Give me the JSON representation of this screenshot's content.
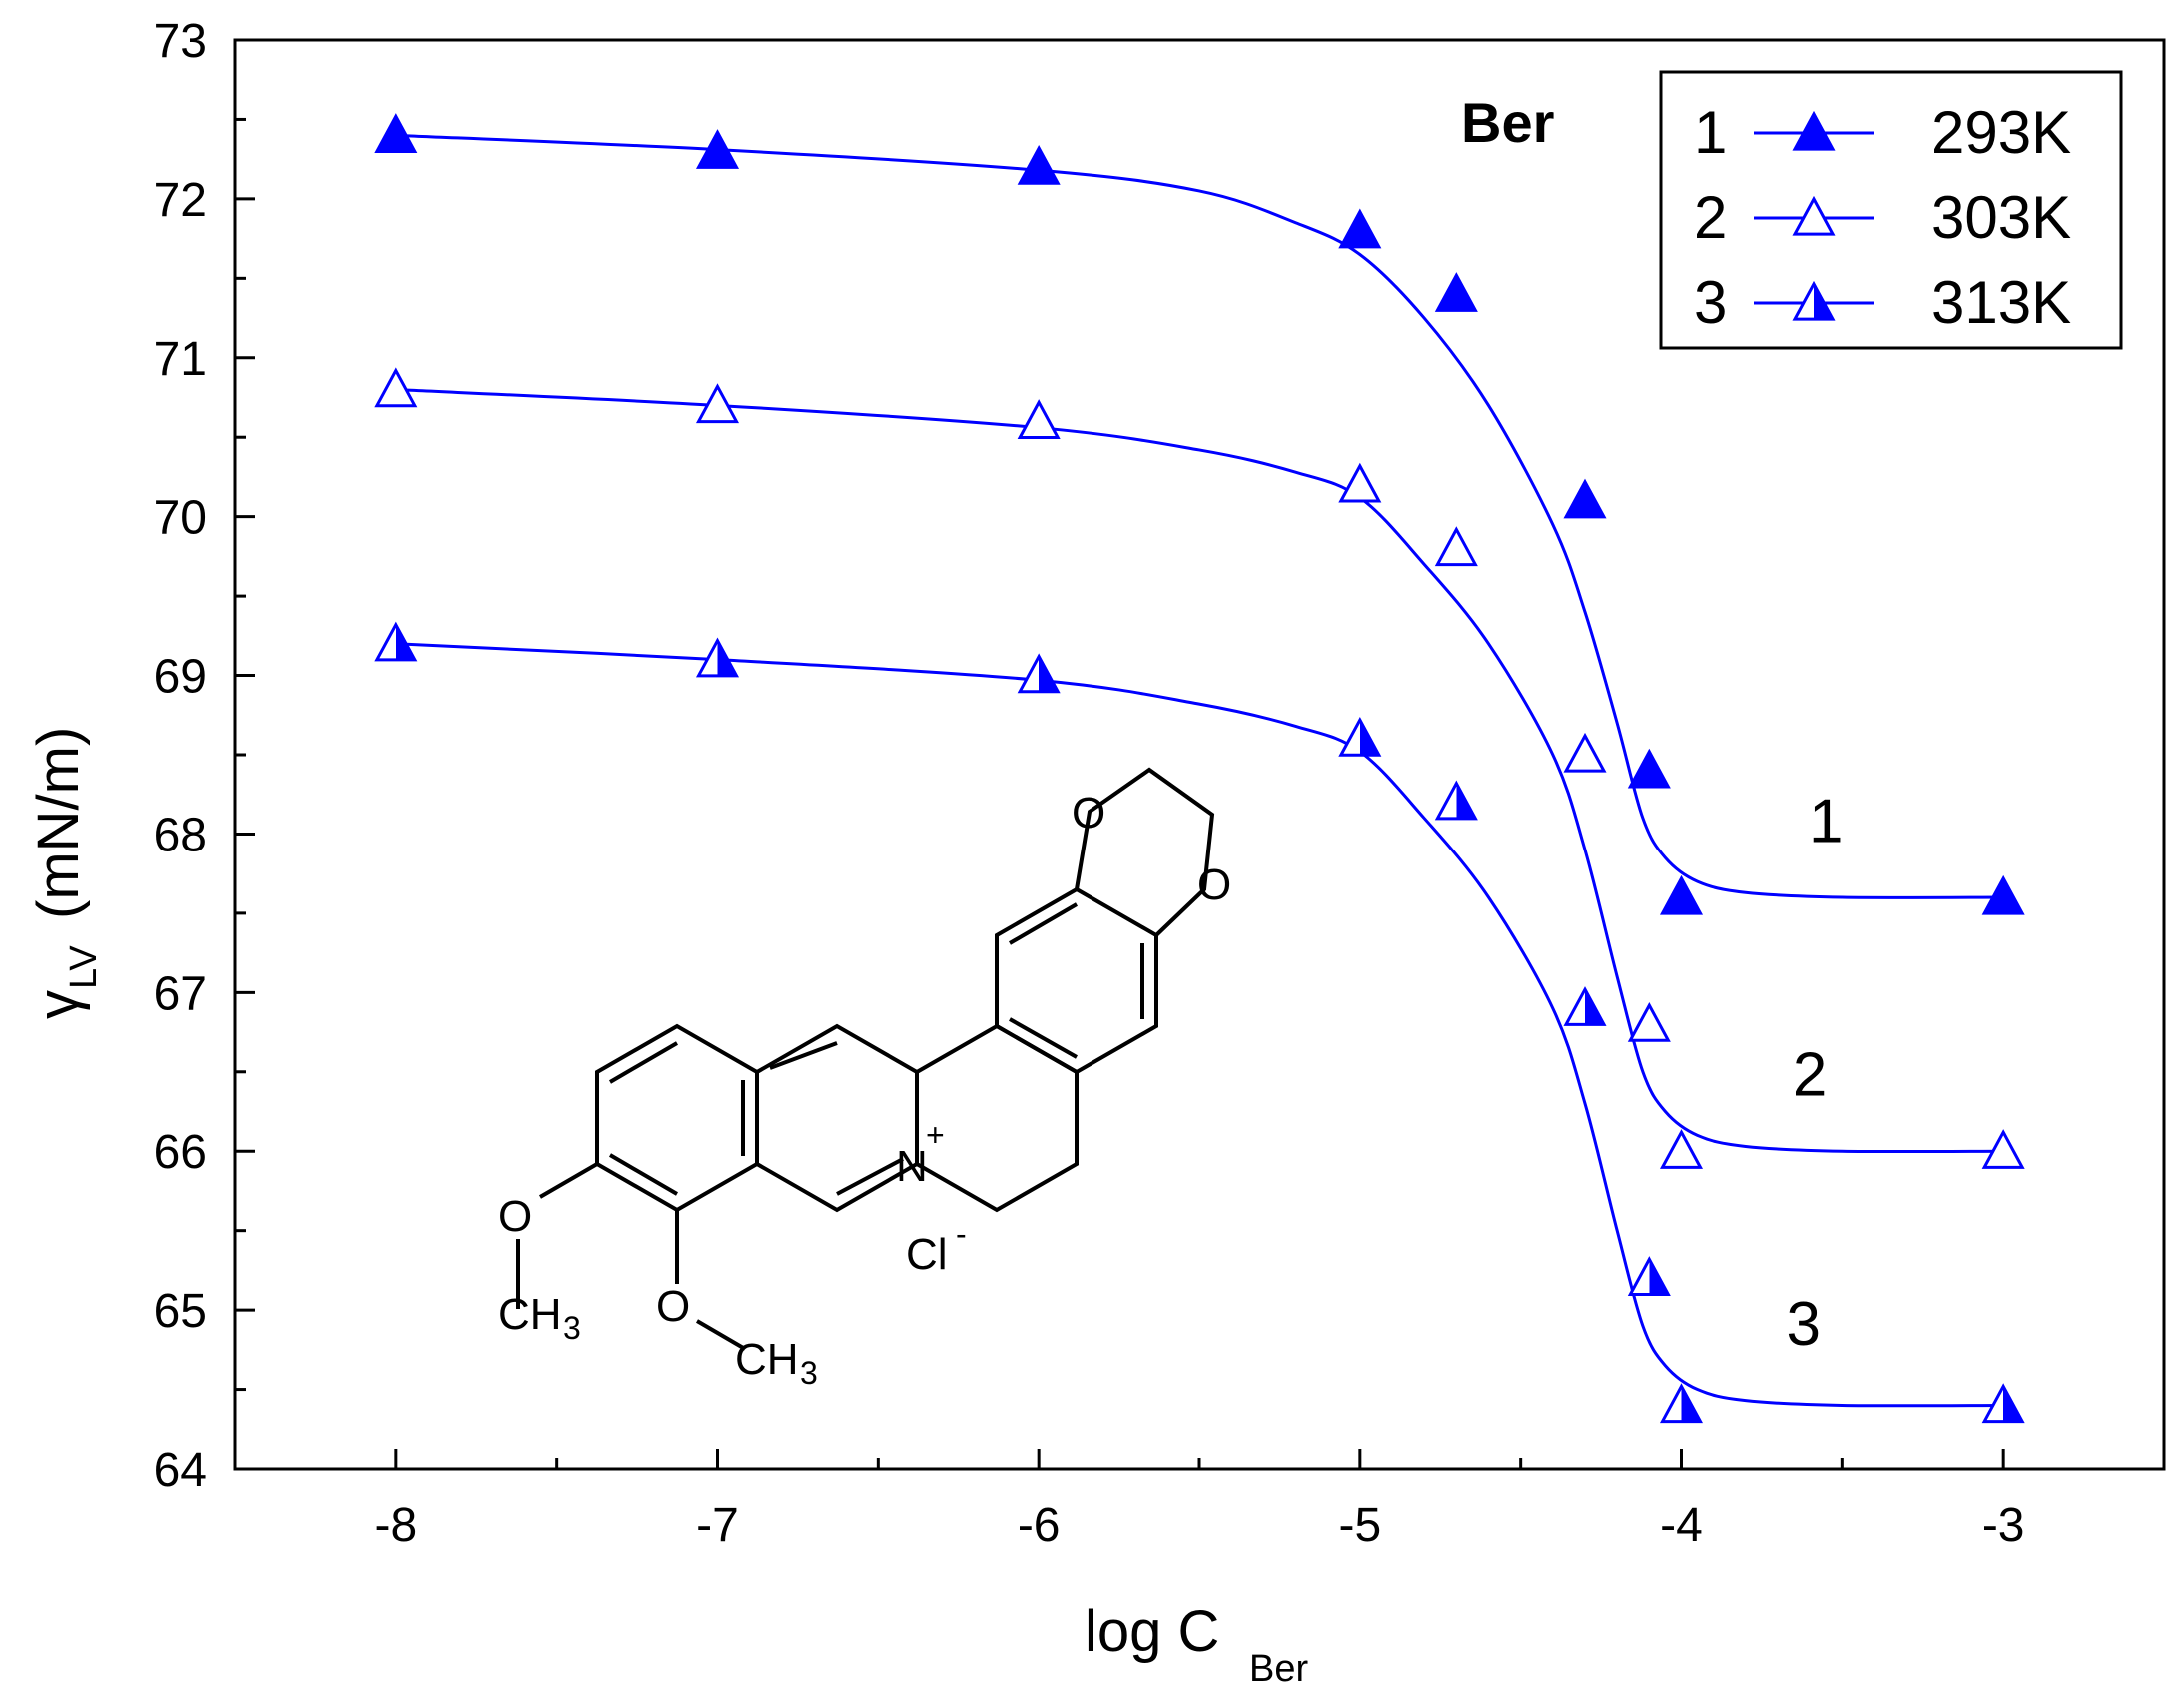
{
  "chart_data": {
    "type": "line",
    "title": "Ber",
    "xlabel": "log C",
    "xlabel_subscript": "Ber",
    "ylabel": "(mN/m)",
    "ylabel_symbol": "γ",
    "ylabel_subscript": "LV",
    "xlim": [
      -8.5,
      -2.5
    ],
    "ylim": [
      64,
      73
    ],
    "x_ticks": [
      "-8",
      "-7",
      "-6",
      "-5",
      "-4",
      "-3"
    ],
    "y_ticks": [
      "64",
      "65",
      "66",
      "67",
      "68",
      "69",
      "70",
      "71",
      "72",
      "73"
    ],
    "grid": false,
    "legend_position": "top-right",
    "series": [
      {
        "name": "293K",
        "number": "1",
        "marker": "filled-triangle",
        "color": "#0000ff",
        "points": [
          [
            -8,
            72.4
          ],
          [
            -7,
            72.3
          ],
          [
            -6,
            72.2
          ],
          [
            -5,
            71.8
          ],
          [
            -4.7,
            71.4
          ],
          [
            -4.3,
            70.1
          ],
          [
            -4.1,
            68.4
          ],
          [
            -4.0,
            67.6
          ],
          [
            -3,
            67.6
          ]
        ],
        "fit": [
          [
            -8,
            72.4
          ],
          [
            -7,
            72.31
          ],
          [
            -6,
            72.18
          ],
          [
            -5.5,
            72.05
          ],
          [
            -5.2,
            71.85
          ],
          [
            -5,
            71.65
          ],
          [
            -4.8,
            71.25
          ],
          [
            -4.6,
            70.7
          ],
          [
            -4.4,
            69.95
          ],
          [
            -4.3,
            69.4
          ],
          [
            -4.2,
            68.7
          ],
          [
            -4.12,
            68.1
          ],
          [
            -4.05,
            67.85
          ],
          [
            -3.95,
            67.7
          ],
          [
            -3.8,
            67.63
          ],
          [
            -3.5,
            67.6
          ],
          [
            -3,
            67.6
          ]
        ]
      },
      {
        "name": "303K",
        "number": "2",
        "marker": "open-triangle",
        "color": "#0000ff",
        "points": [
          [
            -8,
            70.8
          ],
          [
            -7,
            70.7
          ],
          [
            -6,
            70.6
          ],
          [
            -5,
            70.2
          ],
          [
            -4.7,
            69.8
          ],
          [
            -4.3,
            68.5
          ],
          [
            -4.1,
            66.8
          ],
          [
            -4.0,
            66.0
          ],
          [
            -3,
            66.0
          ]
        ],
        "fit": [
          [
            -8,
            70.8
          ],
          [
            -7,
            70.7
          ],
          [
            -6,
            70.56
          ],
          [
            -5.5,
            70.42
          ],
          [
            -5.2,
            70.28
          ],
          [
            -5,
            70.12
          ],
          [
            -4.8,
            69.7
          ],
          [
            -4.6,
            69.2
          ],
          [
            -4.4,
            68.5
          ],
          [
            -4.3,
            67.9
          ],
          [
            -4.2,
            67.1
          ],
          [
            -4.12,
            66.5
          ],
          [
            -4.05,
            66.25
          ],
          [
            -3.95,
            66.1
          ],
          [
            -3.8,
            66.03
          ],
          [
            -3.5,
            66.0
          ],
          [
            -3,
            66.0
          ]
        ]
      },
      {
        "name": "313K",
        "number": "3",
        "marker": "half-filled-triangle",
        "color": "#0000ff",
        "points": [
          [
            -8,
            69.2
          ],
          [
            -7,
            69.1
          ],
          [
            -6,
            69.0
          ],
          [
            -5,
            68.6
          ],
          [
            -4.7,
            68.2
          ],
          [
            -4.3,
            66.9
          ],
          [
            -4.1,
            65.2
          ],
          [
            -4.0,
            64.4
          ],
          [
            -3,
            64.4
          ]
        ],
        "fit": [
          [
            -8,
            69.2
          ],
          [
            -7,
            69.1
          ],
          [
            -6,
            68.97
          ],
          [
            -5.5,
            68.82
          ],
          [
            -5.2,
            68.68
          ],
          [
            -5,
            68.52
          ],
          [
            -4.8,
            68.1
          ],
          [
            -4.6,
            67.6
          ],
          [
            -4.4,
            66.9
          ],
          [
            -4.3,
            66.3
          ],
          [
            -4.2,
            65.5
          ],
          [
            -4.12,
            64.9
          ],
          [
            -4.05,
            64.65
          ],
          [
            -3.95,
            64.5
          ],
          [
            -3.8,
            64.43
          ],
          [
            -3.5,
            64.4
          ],
          [
            -3,
            64.4
          ]
        ]
      }
    ],
    "curve_labels": [
      "1",
      "2",
      "3"
    ],
    "structure": {
      "name": "berberine chloride",
      "labels": {
        "o_label": "O",
        "n_label": "N",
        "plus": "+",
        "cl_label": "Cl",
        "minus": "-",
        "ch3_ch": "CH",
        "ch3_sub": "3"
      }
    }
  }
}
